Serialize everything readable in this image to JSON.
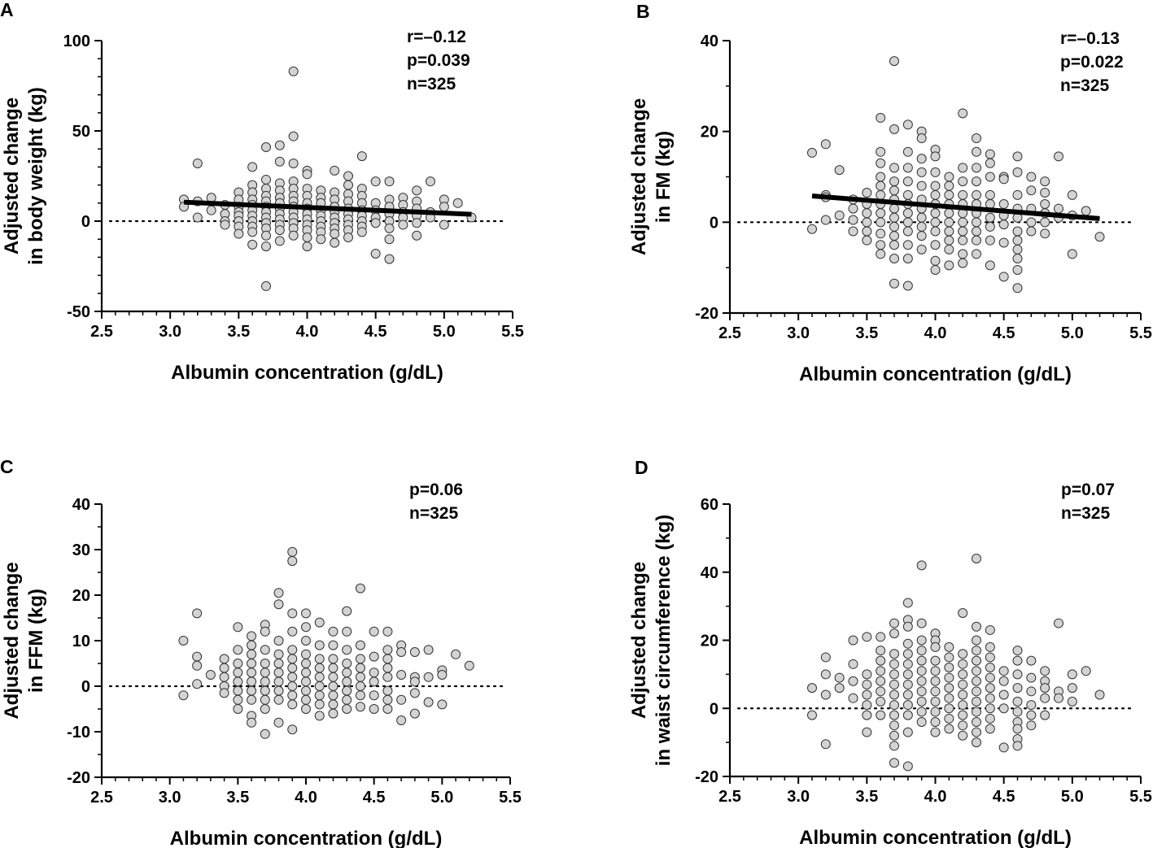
{
  "chart_data": [
    {
      "panel_label": "A",
      "type": "scatter",
      "title": "",
      "xlabel": "Albumin concentration (g/dL)",
      "ylabel_lines": [
        "Adjusted change",
        "in body weight (kg)"
      ],
      "xlim": [
        2.5,
        5.5
      ],
      "ylim": [
        -50,
        100
      ],
      "xticks": [
        "2.5",
        "3.0",
        "3.5",
        "4.0",
        "4.5",
        "5.0",
        "5.5"
      ],
      "yticks": [
        "-50",
        "0",
        "50",
        "100"
      ],
      "ytick_values": [
        -50,
        0,
        50,
        100
      ],
      "stats": [
        "r=–0.12",
        "p=0.039",
        "n=325"
      ],
      "reference_line_y": 0,
      "regression": {
        "x": [
          3.1,
          5.2
        ],
        "y": [
          10.5,
          3.8
        ]
      },
      "series": [
        {
          "x": 3.1,
          "y": [
            12,
            8
          ]
        },
        {
          "x": 3.2,
          "y": [
            32,
            11,
            2
          ]
        },
        {
          "x": 3.3,
          "y": [
            13,
            6
          ]
        },
        {
          "x": 3.4,
          "y": [
            9,
            4,
            0,
            -2
          ]
        },
        {
          "x": 3.5,
          "y": [
            16,
            12,
            8,
            5,
            3,
            0,
            -3,
            -7
          ]
        },
        {
          "x": 3.6,
          "y": [
            30,
            20,
            16,
            12,
            9,
            6,
            3,
            0,
            -3,
            -6,
            -13
          ]
        },
        {
          "x": 3.7,
          "y": [
            41,
            23,
            18,
            14,
            11,
            8,
            5,
            2,
            -1,
            -4,
            -8,
            -14,
            -36
          ]
        },
        {
          "x": 3.8,
          "y": [
            42,
            33,
            21,
            17,
            13,
            10,
            7,
            4,
            1,
            -2,
            -5,
            -11
          ]
        },
        {
          "x": 3.9,
          "y": [
            83,
            47,
            32,
            22,
            18,
            14,
            11,
            8,
            5,
            2,
            -1,
            -4,
            -8
          ]
        },
        {
          "x": 4.0,
          "y": [
            28,
            26,
            18,
            14,
            10,
            7,
            4,
            1,
            -2,
            -5,
            -9,
            -14
          ]
        },
        {
          "x": 4.1,
          "y": [
            17,
            13,
            10,
            6,
            3,
            0,
            -3,
            -6,
            -10
          ]
        },
        {
          "x": 4.2,
          "y": [
            28,
            16,
            12,
            8,
            5,
            2,
            -1,
            -4,
            -7,
            -12
          ]
        },
        {
          "x": 4.3,
          "y": [
            25,
            20,
            15,
            11,
            7,
            4,
            1,
            -2,
            -5,
            -9
          ]
        },
        {
          "x": 4.4,
          "y": [
            36,
            18,
            14,
            10,
            6,
            3,
            0,
            -3,
            -6
          ]
        },
        {
          "x": 4.5,
          "y": [
            22,
            10,
            6,
            2,
            -1,
            -18
          ]
        },
        {
          "x": 4.6,
          "y": [
            22,
            12,
            8,
            4,
            0,
            -4,
            -10,
            -21
          ]
        },
        {
          "x": 4.7,
          "y": [
            13,
            9,
            5,
            2,
            -2
          ]
        },
        {
          "x": 4.8,
          "y": [
            17,
            11,
            7,
            3,
            -1,
            -8
          ]
        },
        {
          "x": 4.9,
          "y": [
            22,
            5,
            2
          ]
        },
        {
          "x": 5.0,
          "y": [
            12,
            8,
            -2
          ]
        },
        {
          "x": 5.1,
          "y": [
            10
          ]
        },
        {
          "x": 5.2,
          "y": [
            2
          ]
        }
      ]
    },
    {
      "panel_label": "B",
      "type": "scatter",
      "title": "",
      "xlabel": "Albumin concentration (g/dL)",
      "ylabel_lines": [
        "Adjusted change",
        "in FM (kg)"
      ],
      "xlim": [
        2.5,
        5.5
      ],
      "ylim": [
        -20,
        40
      ],
      "xticks": [
        "2.5",
        "3.0",
        "3.5",
        "4.0",
        "4.5",
        "5.0",
        "5.5"
      ],
      "yticks": [
        "-20",
        "0",
        "20",
        "40"
      ],
      "ytick_values": [
        -20,
        0,
        20,
        40
      ],
      "stats": [
        "r=–0.13",
        "p=0.022",
        "n=325"
      ],
      "reference_line_y": 0,
      "regression": {
        "x": [
          3.1,
          5.2
        ],
        "y": [
          5.8,
          0.8
        ]
      },
      "series": [
        {
          "x": 3.1,
          "y": [
            15.3,
            -1.5
          ]
        },
        {
          "x": 3.2,
          "y": [
            17.2,
            6,
            5.5,
            0.5
          ]
        },
        {
          "x": 3.3,
          "y": [
            11.5,
            1.5
          ]
        },
        {
          "x": 3.4,
          "y": [
            5,
            3,
            0.5,
            -2
          ]
        },
        {
          "x": 3.5,
          "y": [
            6.5,
            4,
            2,
            0,
            -2,
            -4
          ]
        },
        {
          "x": 3.6,
          "y": [
            23,
            15.5,
            13,
            10,
            8,
            6,
            4,
            2,
            0,
            -2.5,
            -5,
            -7
          ]
        },
        {
          "x": 3.7,
          "y": [
            35.5,
            20.5,
            12,
            9,
            7,
            5,
            3,
            1,
            -1,
            -3,
            -5,
            -8,
            -13.5
          ]
        },
        {
          "x": 3.8,
          "y": [
            21.5,
            15.5,
            12,
            9,
            6,
            4,
            2,
            0,
            -2,
            -5,
            -8,
            -14
          ]
        },
        {
          "x": 3.9,
          "y": [
            20,
            18.5,
            14,
            11,
            8,
            5,
            3,
            1,
            -1,
            -3,
            -6
          ]
        },
        {
          "x": 4.0,
          "y": [
            16,
            14.5,
            11,
            8,
            6,
            4,
            2,
            0,
            -2,
            -5,
            -8.5,
            -10.5
          ]
        },
        {
          "x": 4.1,
          "y": [
            10,
            8,
            6,
            4,
            2,
            0,
            -2,
            -4,
            -6,
            -9.5
          ]
        },
        {
          "x": 4.2,
          "y": [
            24,
            12,
            9,
            6,
            4,
            2,
            0,
            -2,
            -4,
            -7,
            -9
          ]
        },
        {
          "x": 4.3,
          "y": [
            18.5,
            15.5,
            12,
            9,
            6,
            4,
            2,
            0,
            -2,
            -4,
            -7
          ]
        },
        {
          "x": 4.4,
          "y": [
            15,
            13,
            10,
            6,
            4,
            1,
            -1,
            -4,
            -9.5
          ]
        },
        {
          "x": 4.5,
          "y": [
            10,
            9.5,
            4,
            1.5,
            -0.5,
            -4.5,
            -12
          ]
        },
        {
          "x": 4.6,
          "y": [
            14.5,
            11,
            6,
            3,
            1,
            -2,
            -4,
            -6,
            -8,
            -10.5,
            -14.5
          ]
        },
        {
          "x": 4.7,
          "y": [
            10,
            7,
            3,
            0,
            -2
          ]
        },
        {
          "x": 4.8,
          "y": [
            9,
            6.5,
            4,
            2,
            0,
            -2.5
          ]
        },
        {
          "x": 4.9,
          "y": [
            14.5,
            3,
            1
          ]
        },
        {
          "x": 5.0,
          "y": [
            6,
            1.5,
            -7
          ]
        },
        {
          "x": 5.1,
          "y": [
            2.5
          ]
        },
        {
          "x": 5.2,
          "y": [
            -3.2
          ]
        }
      ]
    },
    {
      "panel_label": "C",
      "type": "scatter",
      "title": "",
      "xlabel": "Albumin concentration (g/dL)",
      "ylabel_lines": [
        "Adjusted change",
        "in FFM (kg)"
      ],
      "xlim": [
        2.5,
        5.5
      ],
      "ylim": [
        -20,
        40
      ],
      "xticks": [
        "2.5",
        "3.0",
        "3.5",
        "4.0",
        "4.5",
        "5.0",
        "5.5"
      ],
      "yticks": [
        "-20",
        "-10",
        "0",
        "10",
        "20",
        "30",
        "40"
      ],
      "ytick_values": [
        -20,
        -10,
        0,
        10,
        20,
        30,
        40
      ],
      "stats": [
        "p=0.06",
        "n=325"
      ],
      "reference_line_y": 0,
      "regression": null,
      "series": [
        {
          "x": 3.1,
          "y": [
            10,
            -2
          ]
        },
        {
          "x": 3.2,
          "y": [
            16,
            6.5,
            4.5,
            0.5
          ]
        },
        {
          "x": 3.3,
          "y": [
            2.5
          ]
        },
        {
          "x": 3.4,
          "y": [
            6,
            4,
            2,
            0,
            -1.5
          ]
        },
        {
          "x": 3.5,
          "y": [
            13,
            8,
            5,
            3,
            1,
            -1,
            -3,
            -5
          ]
        },
        {
          "x": 3.6,
          "y": [
            11,
            9,
            7,
            5,
            3,
            1,
            -1,
            -3,
            -6.5,
            -8
          ]
        },
        {
          "x": 3.7,
          "y": [
            13.5,
            12,
            8,
            5,
            3,
            1,
            -1,
            -3,
            -5,
            -10.5
          ]
        },
        {
          "x": 3.8,
          "y": [
            20.5,
            18,
            10,
            7,
            5,
            3,
            1,
            -1,
            -3,
            -8
          ]
        },
        {
          "x": 3.9,
          "y": [
            29.5,
            27.5,
            16,
            12,
            8,
            6,
            4,
            2,
            0,
            -2,
            -4,
            -9.5
          ]
        },
        {
          "x": 4.0,
          "y": [
            16,
            13,
            10,
            7,
            5,
            3,
            1,
            -1,
            -3,
            -5
          ]
        },
        {
          "x": 4.1,
          "y": [
            14,
            9,
            6,
            4,
            2,
            0,
            -2,
            -4,
            -6.5
          ]
        },
        {
          "x": 4.2,
          "y": [
            12,
            9,
            6,
            4,
            2,
            0,
            -2,
            -4,
            -6
          ]
        },
        {
          "x": 4.3,
          "y": [
            16.5,
            12,
            8,
            5,
            3,
            1,
            -1,
            -3,
            -5
          ]
        },
        {
          "x": 4.4,
          "y": [
            21.5,
            9,
            6,
            4,
            2,
            0,
            -2,
            -4.5
          ]
        },
        {
          "x": 4.5,
          "y": [
            12,
            6.5,
            3,
            1,
            -2,
            -5
          ]
        },
        {
          "x": 4.6,
          "y": [
            12,
            8,
            6,
            4,
            2,
            -1,
            -3,
            -5
          ]
        },
        {
          "x": 4.7,
          "y": [
            9,
            7.5,
            2.5,
            -3,
            -7.5
          ]
        },
        {
          "x": 4.8,
          "y": [
            7.5,
            2,
            1,
            -1.5,
            -6
          ]
        },
        {
          "x": 4.9,
          "y": [
            8,
            2,
            -3.5
          ]
        },
        {
          "x": 5.0,
          "y": [
            3.5,
            2.5,
            -4
          ]
        },
        {
          "x": 5.1,
          "y": [
            7
          ]
        },
        {
          "x": 5.2,
          "y": [
            4.5
          ]
        }
      ]
    },
    {
      "panel_label": "D",
      "type": "scatter",
      "title": "",
      "xlabel": "Albumin concentration (g/dL)",
      "ylabel_lines": [
        "Adjusted change",
        "in waist circumference (kg)"
      ],
      "xlim": [
        2.5,
        5.5
      ],
      "ylim": [
        -20,
        60
      ],
      "xticks": [
        "2.5",
        "3.0",
        "3.5",
        "4.0",
        "4.5",
        "5.0",
        "5.5"
      ],
      "yticks": [
        "-20",
        "0",
        "20",
        "40",
        "60"
      ],
      "ytick_values": [
        -20,
        0,
        20,
        40,
        60
      ],
      "stats": [
        "p=0.07",
        "n=325"
      ],
      "reference_line_y": 0,
      "regression": null,
      "series": [
        {
          "x": 3.1,
          "y": [
            6,
            -2
          ]
        },
        {
          "x": 3.2,
          "y": [
            15,
            10,
            4,
            -10.5
          ]
        },
        {
          "x": 3.3,
          "y": [
            9,
            6
          ]
        },
        {
          "x": 3.4,
          "y": [
            20,
            13,
            8,
            3
          ]
        },
        {
          "x": 3.5,
          "y": [
            21,
            10,
            7,
            4,
            1,
            -2,
            -7
          ]
        },
        {
          "x": 3.6,
          "y": [
            21,
            17,
            14,
            11,
            8,
            5,
            2,
            -2
          ]
        },
        {
          "x": 3.7,
          "y": [
            25,
            22,
            16,
            13,
            10,
            7,
            4,
            1,
            -2,
            -5,
            -8,
            -11,
            -16
          ]
        },
        {
          "x": 3.8,
          "y": [
            31,
            26,
            24,
            19,
            16,
            13,
            10,
            7,
            4,
            1,
            -2,
            -7,
            -17
          ]
        },
        {
          "x": 3.9,
          "y": [
            42,
            25,
            20,
            17,
            14,
            11,
            8,
            5,
            2,
            -1,
            -4
          ]
        },
        {
          "x": 4.0,
          "y": [
            22,
            20,
            18,
            14,
            11,
            8,
            5,
            2,
            -1,
            -4,
            -7
          ]
        },
        {
          "x": 4.1,
          "y": [
            18,
            15,
            12,
            9,
            6,
            3,
            0,
            -3,
            -6
          ]
        },
        {
          "x": 4.2,
          "y": [
            28,
            16,
            13,
            10,
            7,
            4,
            1,
            -2,
            -5,
            -8
          ]
        },
        {
          "x": 4.3,
          "y": [
            44,
            24,
            20,
            17,
            14,
            11,
            8,
            5,
            2,
            -1,
            -4,
            -7,
            -10
          ]
        },
        {
          "x": 4.4,
          "y": [
            23,
            18,
            15,
            12,
            9,
            6,
            3,
            0,
            -3,
            -6
          ]
        },
        {
          "x": 4.5,
          "y": [
            11,
            8,
            4,
            0,
            -11.5
          ]
        },
        {
          "x": 4.6,
          "y": [
            17,
            14,
            10,
            6,
            2,
            -1,
            -4,
            -6,
            -9,
            -11
          ]
        },
        {
          "x": 4.7,
          "y": [
            14,
            9,
            5,
            1,
            -2,
            -5
          ]
        },
        {
          "x": 4.8,
          "y": [
            11,
            8,
            6,
            3,
            -2
          ]
        },
        {
          "x": 4.9,
          "y": [
            25,
            5,
            3
          ]
        },
        {
          "x": 5.0,
          "y": [
            10,
            6,
            2
          ]
        },
        {
          "x": 5.1,
          "y": [
            11
          ]
        },
        {
          "x": 5.2,
          "y": [
            4
          ]
        }
      ]
    }
  ]
}
